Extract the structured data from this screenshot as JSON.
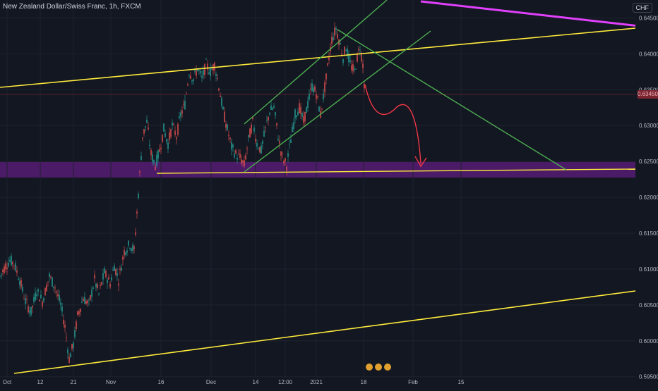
{
  "header": {
    "title": "New Zealand Dollar/Swiss Franc, 1h, FXCM",
    "currency": "CHF"
  },
  "chart_data": {
    "type": "candlestick",
    "symbol": "New Zealand Dollar/Swiss Franc",
    "interval": "1h",
    "source": "FXCM",
    "ylim": [
      0.5935,
      0.6475
    ],
    "y_ticks": [
      0.645,
      0.64,
      0.635,
      0.63,
      0.625,
      0.62,
      0.615,
      0.61,
      0.605,
      0.6,
      0.595
    ],
    "y_tick_labels": [
      "0.64500",
      "0.64000",
      "0.63500",
      "0.63000",
      "0.62500",
      "0.62000",
      "0.61500",
      "0.61000",
      "0.60500",
      "0.60000",
      "0.59500"
    ],
    "x_ticks": [
      "Oct",
      "12",
      "21",
      "Nov",
      "16",
      "Dec",
      "14",
      "12:00",
      "2021",
      "18",
      "Feb",
      "15"
    ],
    "current_price": 0.6345,
    "current_price_label": "0.63450",
    "price_path": [
      [
        0,
        0.609
      ],
      [
        8,
        0.6105
      ],
      [
        14,
        0.6112
      ],
      [
        20,
        0.6108
      ],
      [
        28,
        0.6085
      ],
      [
        36,
        0.6055
      ],
      [
        44,
        0.604
      ],
      [
        52,
        0.607
      ],
      [
        60,
        0.6055
      ],
      [
        70,
        0.609
      ],
      [
        78,
        0.6075
      ],
      [
        86,
        0.605
      ],
      [
        92,
        0.602
      ],
      [
        98,
        0.5975
      ],
      [
        104,
        0.5995
      ],
      [
        110,
        0.6035
      ],
      [
        118,
        0.606
      ],
      [
        126,
        0.605
      ],
      [
        134,
        0.6085
      ],
      [
        140,
        0.6065
      ],
      [
        148,
        0.6095
      ],
      [
        156,
        0.608
      ],
      [
        162,
        0.6105
      ],
      [
        168,
        0.6085
      ],
      [
        176,
        0.6125
      ],
      [
        184,
        0.6135
      ],
      [
        190,
        0.6125
      ],
      [
        196,
        0.6205
      ],
      [
        202,
        0.6285
      ],
      [
        208,
        0.6305
      ],
      [
        214,
        0.626
      ],
      [
        220,
        0.6245
      ],
      [
        226,
        0.6265
      ],
      [
        232,
        0.6295
      ],
      [
        238,
        0.6275
      ],
      [
        244,
        0.63
      ],
      [
        250,
        0.6285
      ],
      [
        256,
        0.6315
      ],
      [
        262,
        0.633
      ],
      [
        268,
        0.6375
      ],
      [
        274,
        0.6365
      ],
      [
        280,
        0.638
      ],
      [
        286,
        0.6365
      ],
      [
        292,
        0.6385
      ],
      [
        298,
        0.6375
      ],
      [
        304,
        0.6385
      ],
      [
        310,
        0.6355
      ],
      [
        316,
        0.632
      ],
      [
        322,
        0.6295
      ],
      [
        328,
        0.627
      ],
      [
        334,
        0.626
      ],
      [
        340,
        0.6255
      ],
      [
        346,
        0.6245
      ],
      [
        352,
        0.628
      ],
      [
        358,
        0.6305
      ],
      [
        364,
        0.6275
      ],
      [
        370,
        0.6265
      ],
      [
        376,
        0.6295
      ],
      [
        382,
        0.632
      ],
      [
        388,
        0.6325
      ],
      [
        394,
        0.6285
      ],
      [
        400,
        0.6255
      ],
      [
        406,
        0.6245
      ],
      [
        412,
        0.628
      ],
      [
        418,
        0.6315
      ],
      [
        424,
        0.6325
      ],
      [
        430,
        0.6305
      ],
      [
        436,
        0.633
      ],
      [
        442,
        0.6355
      ],
      [
        448,
        0.6345
      ],
      [
        454,
        0.6315
      ],
      [
        458,
        0.634
      ],
      [
        462,
        0.6365
      ],
      [
        466,
        0.6395
      ],
      [
        470,
        0.642
      ],
      [
        476,
        0.6435
      ],
      [
        480,
        0.642
      ],
      [
        486,
        0.6395
      ],
      [
        490,
        0.641
      ],
      [
        496,
        0.6385
      ],
      [
        502,
        0.6375
      ],
      [
        506,
        0.6395
      ],
      [
        510,
        0.641
      ],
      [
        514,
        0.6385
      ],
      [
        517,
        0.6345
      ]
    ],
    "zone": {
      "from": 0.6225,
      "to": 0.6247,
      "color": "#7b1fa2"
    },
    "projection_arrow": {
      "color": "#f23645"
    },
    "line_colors": {
      "yellow": "#ffeb3b",
      "green": "#4caf50",
      "magenta": "#e040fb"
    },
    "marker_icon": "event-icons"
  }
}
